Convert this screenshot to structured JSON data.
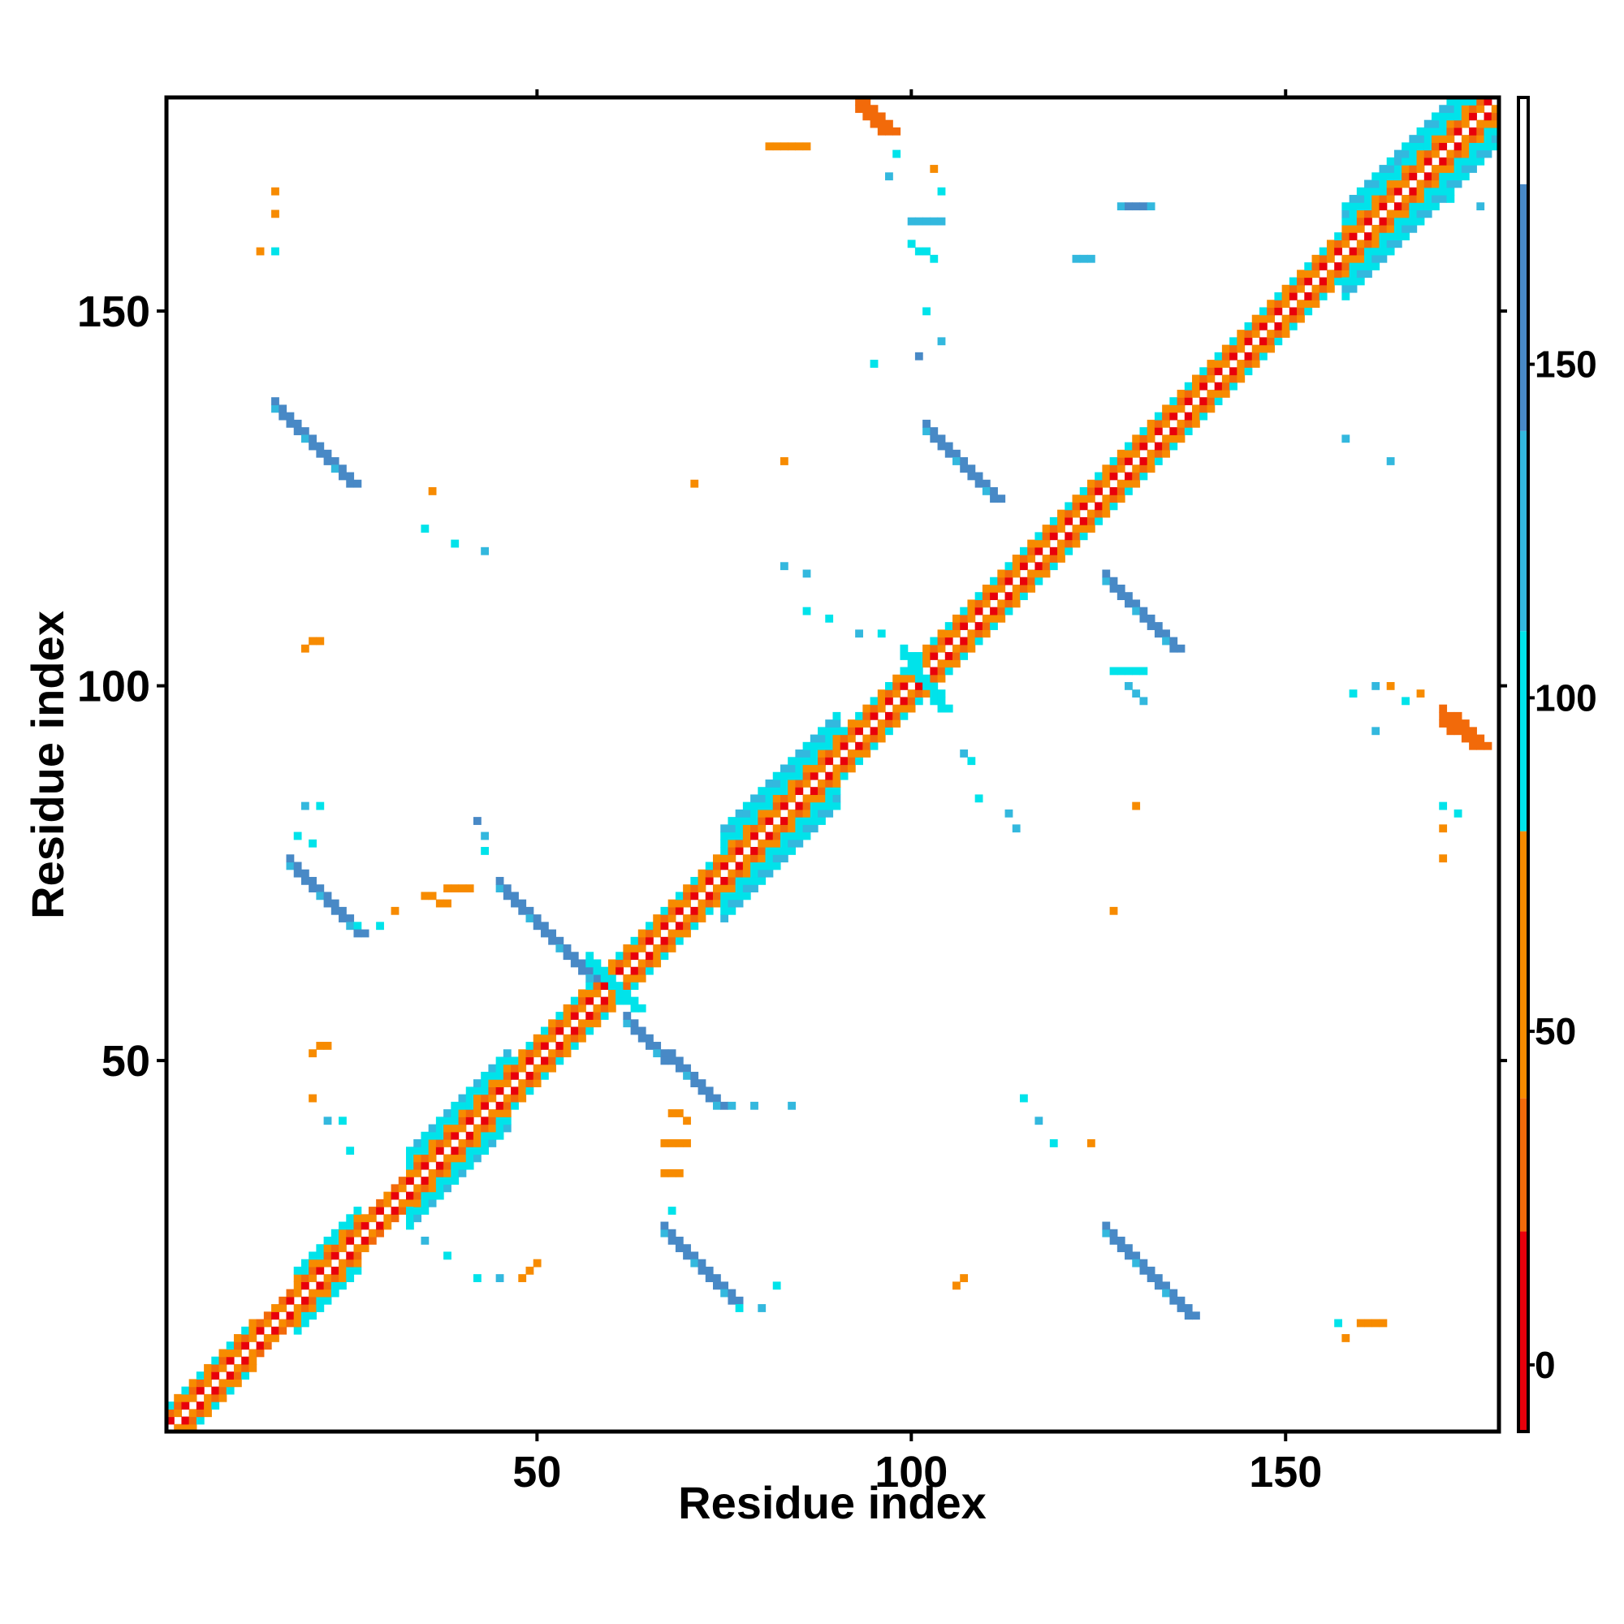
{
  "chart_data": {
    "type": "heatmap",
    "xlabel": "Residue index",
    "ylabel": "Residue index",
    "xlim": [
      1,
      178
    ],
    "ylim": [
      1,
      178
    ],
    "x_ticks": [
      50,
      100,
      150
    ],
    "y_ticks": [
      50,
      100,
      150
    ],
    "grid": false,
    "legend": "right",
    "colorbar": {
      "ticks": [
        0,
        50,
        100,
        150
      ],
      "range": [
        -10,
        190
      ],
      "bands": [
        {
          "from": -10,
          "to": 20,
          "color": "#e8000b"
        },
        {
          "from": 20,
          "to": 40,
          "color": "#f26a0a"
        },
        {
          "from": 40,
          "to": 80,
          "color": "#f78b00"
        },
        {
          "from": 80,
          "to": 110,
          "color": "#00e3ea"
        },
        {
          "from": 110,
          "to": 140,
          "color": "#33b8de"
        },
        {
          "from": 140,
          "to": 177,
          "color": "#4889c6"
        },
        {
          "from": 177,
          "to": 190,
          "color": "#ffffff"
        }
      ]
    },
    "background_color": "#ffffff",
    "diagonal_band": [
      {
        "from": 1,
        "to": 12,
        "half_width": 3
      },
      {
        "from": 12,
        "to": 18,
        "half_width": 2
      },
      {
        "from": 18,
        "to": 26,
        "half_width": 4
      },
      {
        "from": 26,
        "to": 33,
        "half_width": 2
      },
      {
        "from": 33,
        "to": 46,
        "half_width": 5
      },
      {
        "from": 46,
        "to": 57,
        "half_width": 3
      },
      {
        "from": 57,
        "to": 63,
        "half_width": 3
      },
      {
        "from": 63,
        "to": 75,
        "half_width": 3
      },
      {
        "from": 75,
        "to": 90,
        "half_width": 6
      },
      {
        "from": 90,
        "to": 100,
        "half_width": 3
      },
      {
        "from": 100,
        "to": 115,
        "half_width": 3
      },
      {
        "from": 115,
        "to": 126,
        "half_width": 3
      },
      {
        "from": 126,
        "to": 140,
        "half_width": 3
      },
      {
        "from": 140,
        "to": 158,
        "half_width": 3
      },
      {
        "from": 158,
        "to": 178,
        "half_width": 6
      }
    ],
    "contact_segments": [
      {
        "x1": 15,
        "y1": 137,
        "x2": 25,
        "y2": 127,
        "width": 2,
        "value": 145
      },
      {
        "x1": 17,
        "y1": 76,
        "x2": 26,
        "y2": 67,
        "width": 2,
        "value": 145
      },
      {
        "x1": 45,
        "y1": 73,
        "x2": 57,
        "y2": 61,
        "width": 2,
        "value": 140
      },
      {
        "x1": 62,
        "y1": 55,
        "x2": 74,
        "y2": 44,
        "width": 2,
        "value": 140
      },
      {
        "x1": 67,
        "y1": 27,
        "x2": 76,
        "y2": 18,
        "width": 2,
        "value": 145
      },
      {
        "x1": 102,
        "y1": 134,
        "x2": 111,
        "y2": 125,
        "width": 2,
        "value": 145
      },
      {
        "x1": 126,
        "y1": 114,
        "x2": 135,
        "y2": 105,
        "width": 2,
        "value": 145
      },
      {
        "x1": 126,
        "y1": 27,
        "x2": 137,
        "y2": 16,
        "width": 2,
        "value": 145
      },
      {
        "x1": 99,
        "y1": 104,
        "x2": 104,
        "y2": 97,
        "width": 2,
        "value": 100
      },
      {
        "x1": 57,
        "y1": 63,
        "x2": 63,
        "y2": 57,
        "width": 2,
        "value": 100
      },
      {
        "x1": 93,
        "y1": 177,
        "x2": 96,
        "y2": 174,
        "width": 3,
        "value": 35
      },
      {
        "x1": 171,
        "y1": 95,
        "x2": 175,
        "y2": 92,
        "width": 3,
        "value": 35
      },
      {
        "x1": 100,
        "y1": 162,
        "x2": 104,
        "y2": 162,
        "width": 1,
        "value": 130
      },
      {
        "x1": 100,
        "y1": 159,
        "x2": 103,
        "y2": 157,
        "width": 1,
        "value": 100
      },
      {
        "x1": 127,
        "y1": 102,
        "x2": 131,
        "y2": 102,
        "width": 1,
        "value": 100
      },
      {
        "x1": 129,
        "y1": 100,
        "x2": 131,
        "y2": 98,
        "width": 1,
        "value": 120
      },
      {
        "x1": 35,
        "y1": 72,
        "x2": 38,
        "y2": 71,
        "width": 1,
        "value": 45
      },
      {
        "x1": 38,
        "y1": 73,
        "x2": 41,
        "y2": 73,
        "width": 1,
        "value": 45
      },
      {
        "x1": 68,
        "y1": 43,
        "x2": 70,
        "y2": 42,
        "width": 1,
        "value": 45
      },
      {
        "x1": 67,
        "y1": 39,
        "x2": 70,
        "y2": 39,
        "width": 1,
        "value": 45
      },
      {
        "x1": 67,
        "y1": 35,
        "x2": 69,
        "y2": 35,
        "width": 1,
        "value": 45
      },
      {
        "x1": 20,
        "y1": 51,
        "x2": 22,
        "y2": 52,
        "width": 1,
        "value": 50
      },
      {
        "x1": 48,
        "y1": 21,
        "x2": 50,
        "y2": 23,
        "width": 1,
        "value": 50
      },
      {
        "x1": 106,
        "y1": 20,
        "x2": 107,
        "y2": 21,
        "width": 1,
        "value": 50
      },
      {
        "x1": 81,
        "y1": 172,
        "x2": 86,
        "y2": 172,
        "width": 1,
        "value": 45
      },
      {
        "x1": 19,
        "y1": 105,
        "x2": 21,
        "y2": 106,
        "width": 1,
        "value": 50
      },
      {
        "x1": 160,
        "y1": 15,
        "x2": 163,
        "y2": 15,
        "width": 1,
        "value": 45
      },
      {
        "x1": 122,
        "y1": 157,
        "x2": 124,
        "y2": 157,
        "width": 1,
        "value": 135
      },
      {
        "x1": 128,
        "y1": 164,
        "x2": 132,
        "y2": 164,
        "width": 1,
        "value": 145
      }
    ],
    "contact_points": [
      [
        15,
        166,
        50
      ],
      [
        15,
        163,
        40
      ],
      [
        13,
        158,
        45
      ],
      [
        15,
        158,
        100
      ],
      [
        36,
        126,
        40
      ],
      [
        35,
        121,
        100
      ],
      [
        39,
        119,
        100
      ],
      [
        43,
        118,
        130
      ],
      [
        71,
        127,
        50
      ],
      [
        83,
        130,
        45
      ],
      [
        83,
        116,
        130
      ],
      [
        86,
        115,
        120
      ],
      [
        86,
        110,
        100
      ],
      [
        89,
        109,
        100
      ],
      [
        93,
        107,
        130
      ],
      [
        96,
        107,
        100
      ],
      [
        19,
        84,
        130
      ],
      [
        21,
        84,
        100
      ],
      [
        18,
        80,
        100
      ],
      [
        20,
        79,
        100
      ],
      [
        42,
        82,
        140
      ],
      [
        43,
        80,
        130
      ],
      [
        43,
        78,
        100
      ],
      [
        26,
        68,
        100
      ],
      [
        29,
        68,
        100
      ],
      [
        31,
        70,
        50
      ],
      [
        20,
        45,
        60
      ],
      [
        22,
        42,
        130
      ],
      [
        24,
        42,
        100
      ],
      [
        25,
        38,
        100
      ],
      [
        35,
        26,
        130
      ],
      [
        38,
        24,
        100
      ],
      [
        42,
        21,
        100
      ],
      [
        45,
        21,
        130
      ],
      [
        68,
        30,
        100
      ],
      [
        82,
        20,
        100
      ],
      [
        80,
        17,
        130
      ],
      [
        77,
        17,
        100
      ],
      [
        76,
        44,
        130
      ],
      [
        79,
        44,
        130
      ],
      [
        84,
        44,
        130
      ],
      [
        115,
        45,
        100
      ],
      [
        117,
        42,
        130
      ],
      [
        119,
        39,
        100
      ],
      [
        124,
        39,
        50
      ],
      [
        113,
        83,
        130
      ],
      [
        114,
        81,
        130
      ],
      [
        107,
        91,
        130
      ],
      [
        108,
        90,
        100
      ],
      [
        109,
        85,
        100
      ],
      [
        130,
        84,
        50
      ],
      [
        127,
        70,
        50
      ],
      [
        95,
        143,
        100
      ],
      [
        101,
        144,
        140
      ],
      [
        104,
        146,
        130
      ],
      [
        102,
        150,
        100
      ],
      [
        162,
        100,
        130
      ],
      [
        164,
        100,
        50
      ],
      [
        166,
        98,
        100
      ],
      [
        162,
        94,
        130
      ],
      [
        159,
        99,
        100
      ],
      [
        168,
        99,
        50
      ],
      [
        158,
        133,
        130
      ],
      [
        164,
        130,
        130
      ],
      [
        171,
        84,
        100
      ],
      [
        173,
        83,
        100
      ],
      [
        171,
        81,
        50
      ],
      [
        171,
        77,
        40
      ],
      [
        157,
        15,
        100
      ],
      [
        158,
        13,
        45
      ],
      [
        103,
        169,
        40
      ],
      [
        104,
        166,
        100
      ],
      [
        165,
        170,
        130
      ],
      [
        172,
        165,
        100
      ],
      [
        176,
        164,
        130
      ],
      [
        97,
        168,
        130
      ],
      [
        98,
        171,
        100
      ]
    ]
  }
}
